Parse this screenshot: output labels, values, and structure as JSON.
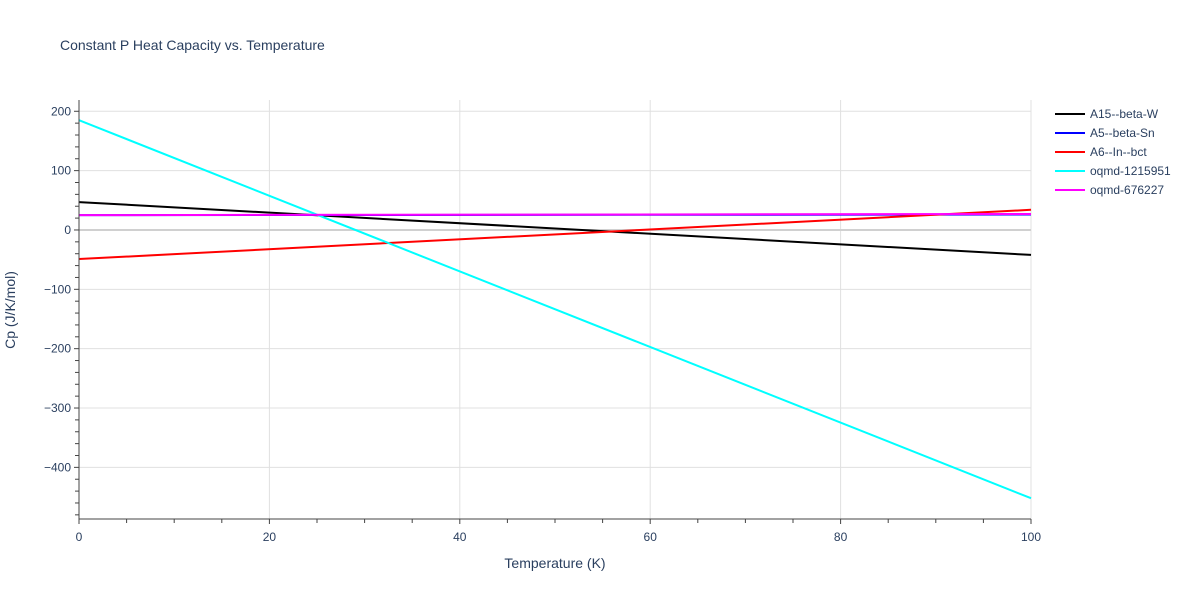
{
  "chart_data": {
    "type": "line",
    "title": "Constant P Heat Capacity vs. Temperature",
    "xlabel": "Temperature (K)",
    "ylabel": "Cp (J/K/mol)",
    "xlim": [
      0,
      100
    ],
    "ylim": [
      -487,
      219
    ],
    "xticks": [
      0,
      20,
      40,
      60,
      80,
      100
    ],
    "yticks": [
      -400,
      -300,
      -200,
      -100,
      0,
      100,
      200
    ],
    "ytick_labels": [
      "−400",
      "−300",
      "−200",
      "−100",
      "0",
      "100",
      "200"
    ],
    "grid": true,
    "legend_position": "top-right",
    "series": [
      {
        "name": "A15--beta-W",
        "color": "#000000",
        "x": [
          0,
          100
        ],
        "y": [
          47,
          -42
        ]
      },
      {
        "name": "A5--beta-Sn",
        "color": "#0000ff",
        "x": [
          0,
          100
        ],
        "y": [
          25,
          26
        ]
      },
      {
        "name": "A6--In--bct",
        "color": "#ff0000",
        "x": [
          0,
          100
        ],
        "y": [
          -49,
          34
        ]
      },
      {
        "name": "oqmd-1215951",
        "color": "#00ffff",
        "x": [
          0,
          100
        ],
        "y": [
          185,
          -452
        ]
      },
      {
        "name": "oqmd-676227",
        "color": "#ff00ff",
        "x": [
          0,
          100
        ],
        "y": [
          25,
          27
        ]
      }
    ]
  }
}
